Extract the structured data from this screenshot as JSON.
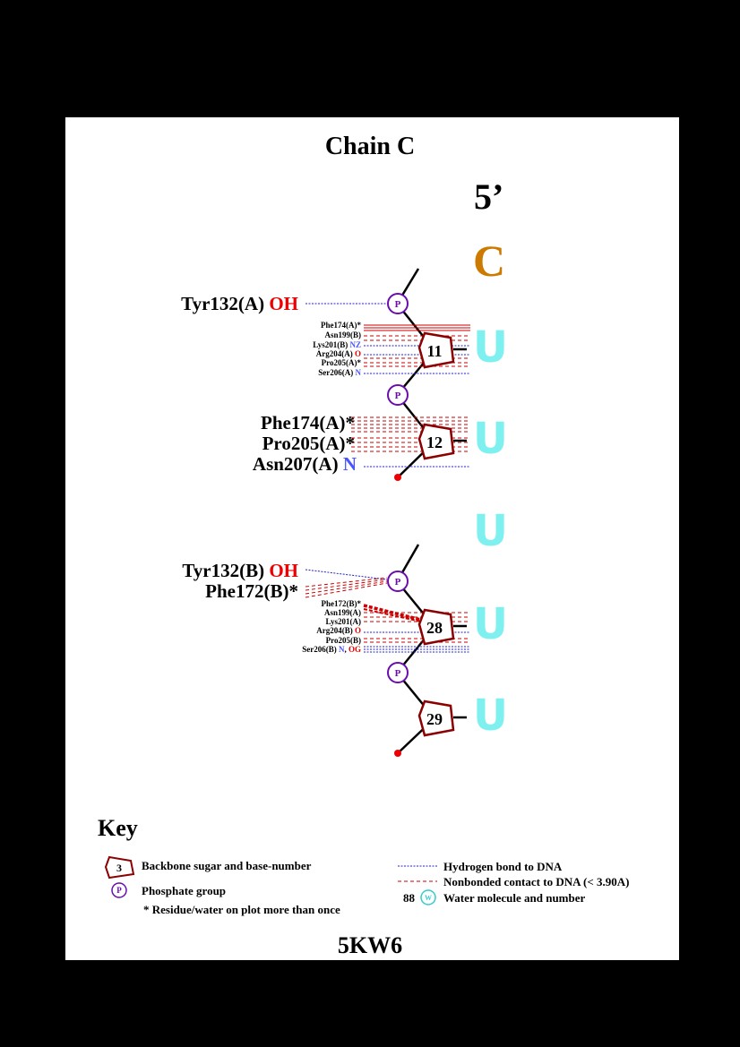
{
  "title": "Chain C",
  "five_prime": "5’",
  "pdb_id": "5KW6",
  "colors": {
    "sugar": "#8b0000",
    "phosphate": "#6a0dad",
    "hbond": "#2222cc",
    "nonbonded": "#cc0000",
    "base_first": "#cc7a00",
    "base": "#7ef0f0",
    "atom_red": "#ee0000",
    "atom_blue": "#4a55ff"
  },
  "bases": [
    "C",
    "U",
    "U",
    "U",
    "U",
    "U"
  ],
  "nucleotides": [
    {
      "number": "11"
    },
    {
      "number": "12"
    },
    {
      "number": "28"
    },
    {
      "number": "29"
    }
  ],
  "phosphate_label": "P",
  "labels": {
    "tyr132a": {
      "res": "Tyr132(A)",
      "atom": "OH"
    },
    "phe174a_11": {
      "res": "Phe174(A)*"
    },
    "asn199b": {
      "res": "Asn199(B)"
    },
    "lys201b": {
      "res": "Lys201(B)",
      "atom": "NZ"
    },
    "arg204a": {
      "res": "Arg204(A)",
      "atom": "O"
    },
    "pro205a_11": {
      "res": "Pro205(A)*"
    },
    "ser206a": {
      "res": "Ser206(A)",
      "atom": "N"
    },
    "phe174a_12": {
      "res": "Phe174(A)*"
    },
    "pro205a_12": {
      "res": "Pro205(A)*"
    },
    "asn207a": {
      "res": "Asn207(A)",
      "atom": "N"
    },
    "tyr132b": {
      "res": "Tyr132(B)",
      "atom": "OH"
    },
    "phe172b_p": {
      "res": "Phe172(B)*"
    },
    "phe172b_28": {
      "res": "Phe172(B)*"
    },
    "asn199a": {
      "res": "Asn199(A)"
    },
    "lys201a": {
      "res": "Lys201(A)"
    },
    "arg204b": {
      "res": "Arg204(B)",
      "atom": "O"
    },
    "pro205b": {
      "res": "Pro205(B)"
    },
    "ser206b": {
      "res": "Ser206(B)",
      "atom1": "N",
      "sep": ",",
      "atom2": "OG"
    }
  },
  "key": {
    "title": "Key",
    "sugar_example": "3",
    "sugar_text": "Backbone sugar and base-number",
    "phosphate_text": "Phosphate group",
    "repeat_text": "* Residue/water on plot more than once",
    "hbond_text": "Hydrogen bond to DNA",
    "nonbonded_text": "Nonbonded contact to DNA (< 3.90A)",
    "water_number": "88",
    "water_symbol": "W",
    "water_text": "Water molecule and number"
  }
}
